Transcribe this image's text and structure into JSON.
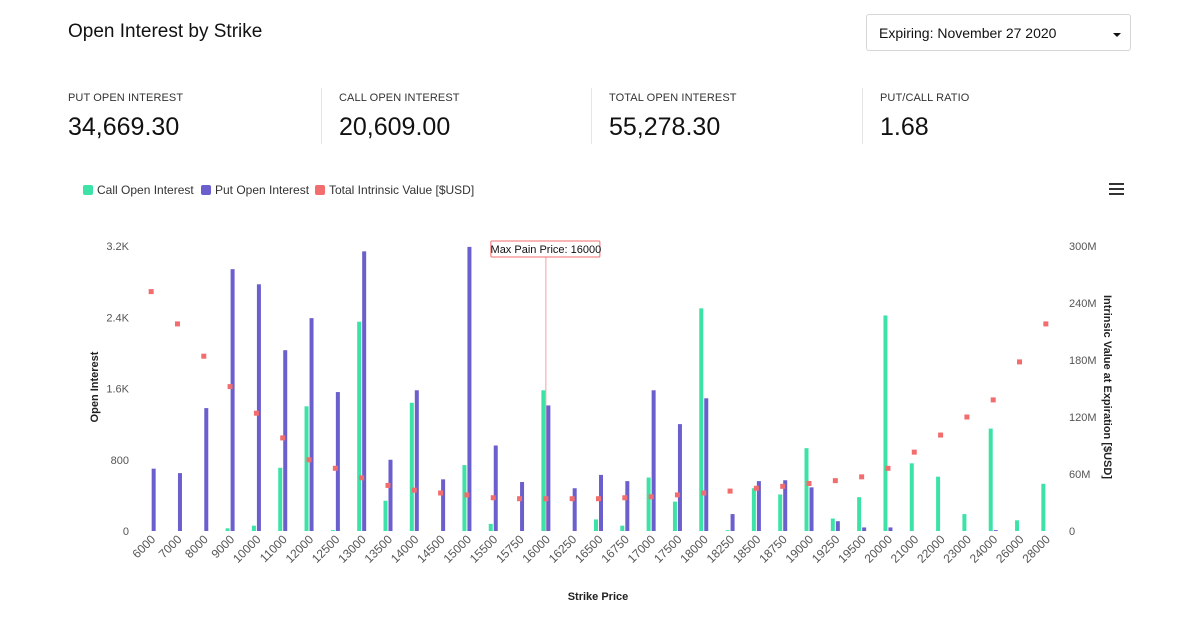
{
  "header": {
    "title": "Open Interest by Strike",
    "expiry_label": "Expiring: November 27 2020"
  },
  "stats": [
    {
      "label": "PUT OPEN INTEREST",
      "value": "34,669.30"
    },
    {
      "label": "CALL OPEN INTEREST",
      "value": "20,609.00"
    },
    {
      "label": "TOTAL OPEN INTEREST",
      "value": "55,278.30"
    },
    {
      "label": "PUT/CALL RATIO",
      "value": "1.68"
    }
  ],
  "colors": {
    "call": "#3de3a6",
    "put": "#6a5fcd",
    "intrinsic": "#f26d6d",
    "maxpain": "#f2a0a0"
  },
  "icons": {
    "menu": "hamburger-menu-icon",
    "dropdown": "caret-down-icon"
  },
  "chart_data": {
    "type": "bar",
    "title": "",
    "xlabel": "Strike Price",
    "ylabel": "Open Interest",
    "y2label": "Intrinsic Value at Expiration [$USD]",
    "ylim": [
      0,
      3200
    ],
    "y2lim": [
      0,
      300
    ],
    "yticks": [
      "0",
      "800",
      "1.6K",
      "2.4K",
      "3.2K"
    ],
    "y2ticks": [
      "0",
      "60M",
      "120M",
      "180M",
      "240M",
      "300M"
    ],
    "categories": [
      "6000",
      "7000",
      "8000",
      "9000",
      "10000",
      "11000",
      "12000",
      "12500",
      "13000",
      "13500",
      "14000",
      "14500",
      "15000",
      "15500",
      "15750",
      "16000",
      "16250",
      "16500",
      "16750",
      "17000",
      "17500",
      "18000",
      "18250",
      "18500",
      "18750",
      "19000",
      "19250",
      "19500",
      "20000",
      "21000",
      "22000",
      "23000",
      "24000",
      "26000",
      "28000"
    ],
    "legend": [
      "Call Open Interest",
      "Put Open Interest",
      "Total Intrinsic Value [$USD]"
    ],
    "annotation": {
      "label": "Max Pain Price: 16000",
      "category": "16000"
    },
    "series": [
      {
        "name": "Call Open Interest",
        "kind": "bar",
        "axis": "left",
        "values": [
          0,
          0,
          0,
          30,
          60,
          710,
          1400,
          10,
          2350,
          340,
          1440,
          0,
          740,
          80,
          0,
          1580,
          0,
          130,
          60,
          600,
          330,
          2500,
          10,
          480,
          410,
          930,
          140,
          380,
          2420,
          760,
          610,
          190,
          1150,
          120,
          530
        ]
      },
      {
        "name": "Put Open Interest",
        "kind": "bar",
        "axis": "left",
        "values": [
          700,
          650,
          1380,
          2940,
          2770,
          2030,
          2390,
          1560,
          3140,
          800,
          1580,
          580,
          3190,
          960,
          550,
          1410,
          480,
          630,
          560,
          1580,
          1200,
          1490,
          190,
          560,
          570,
          490,
          110,
          40,
          40,
          0,
          0,
          0,
          10,
          0,
          0
        ]
      },
      {
        "name": "Total Intrinsic Value [$USD]",
        "kind": "scatter",
        "axis": "right",
        "values": [
          252,
          218,
          184,
          152,
          124,
          98,
          75,
          66,
          56,
          48,
          43,
          40,
          38,
          35,
          34,
          34,
          34,
          34,
          35,
          36,
          38,
          40,
          42,
          45,
          47,
          50,
          53,
          57,
          66,
          83,
          101,
          120,
          138,
          178,
          218
        ]
      }
    ]
  }
}
